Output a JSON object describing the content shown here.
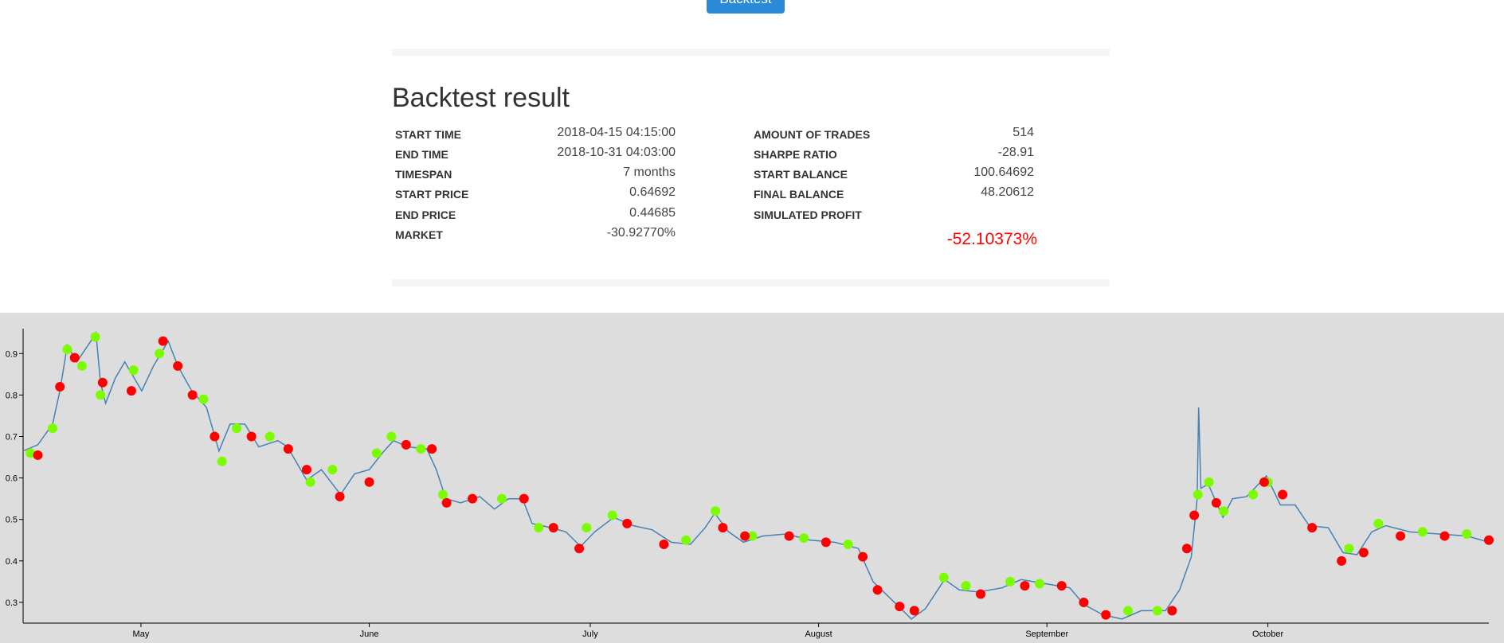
{
  "header": {
    "button": "Backtest"
  },
  "result": {
    "title": "Backtest result",
    "left": [
      {
        "label": "START TIME",
        "value": "2018-04-15 04:15:00"
      },
      {
        "label": "END TIME",
        "value": "2018-10-31 04:03:00"
      },
      {
        "label": "TIMESPAN",
        "value": "7 months"
      },
      {
        "label": "START PRICE",
        "value": "0.64692"
      },
      {
        "label": "END PRICE",
        "value": "0.44685"
      },
      {
        "label": "MARKET",
        "value": "-30.92770%"
      }
    ],
    "right": [
      {
        "label": "AMOUNT OF TRADES",
        "value": "514"
      },
      {
        "label": "SHARPE RATIO",
        "value": "-28.91"
      },
      {
        "label": "START BALANCE",
        "value": "100.64692"
      },
      {
        "label": "FINAL BALANCE",
        "value": "48.20612"
      },
      {
        "label": "SIMULATED PROFIT"
      }
    ],
    "profit": "-52.10373%"
  },
  "chart_data": {
    "type": "line",
    "xlim": [
      0,
      199
    ],
    "ylim": [
      0.25,
      0.96
    ],
    "xticks": [
      {
        "value": 16,
        "label": "May"
      },
      {
        "value": 47,
        "label": "June"
      },
      {
        "value": 77,
        "label": "July"
      },
      {
        "value": 108,
        "label": "August"
      },
      {
        "value": 139,
        "label": "September"
      },
      {
        "value": 169,
        "label": "October"
      }
    ],
    "yticks": [
      0.3,
      0.4,
      0.5,
      0.6,
      0.7,
      0.8,
      0.9
    ],
    "series": [
      {
        "color": "#4682b4",
        "x": [
          0,
          2,
          4,
          5,
          6,
          7.3,
          9.2,
          9.9,
          10.5,
          11.2,
          12.5,
          13.8,
          16.1,
          17.7,
          19.7,
          21,
          22.9,
          24.9,
          26.6,
          28.1,
          30.1,
          32,
          34.6,
          35.9,
          38.5,
          40.5,
          43.1,
          45,
          47,
          49,
          50.3,
          52.2,
          54.8,
          56.1,
          57.4,
          59.4,
          62,
          64,
          65.9,
          67.8,
          69.1,
          71.7,
          73.7,
          75.7,
          77.6,
          80.2,
          82.8,
          85.4,
          88,
          90.6,
          92.6,
          93.9,
          95.8,
          97.8,
          100.4,
          103.6,
          106.9,
          110.2,
          113.4,
          115.4,
          118,
          120.6,
          122.5,
          125.1,
          127.1,
          129.7,
          132.9,
          135.5,
          138.8,
          142.1,
          144,
          146.6,
          149.2,
          151.8,
          155.1,
          157,
          158.6,
          159.4,
          159.6,
          159.9,
          160.9,
          162.9,
          164.2,
          166.1,
          168.8,
          170.7,
          172.7,
          174.6,
          177.2,
          179.2,
          181.1,
          183.1,
          185,
          188.3,
          192.2,
          196.1,
          199
        ],
        "values": [
          0.665,
          0.68,
          0.73,
          0.81,
          0.92,
          0.88,
          0.93,
          0.95,
          0.83,
          0.78,
          0.84,
          0.88,
          0.81,
          0.87,
          0.93,
          0.87,
          0.81,
          0.77,
          0.665,
          0.73,
          0.73,
          0.675,
          0.69,
          0.675,
          0.595,
          0.62,
          0.56,
          0.61,
          0.62,
          0.665,
          0.69,
          0.675,
          0.67,
          0.62,
          0.55,
          0.54,
          0.555,
          0.525,
          0.55,
          0.55,
          0.49,
          0.48,
          0.47,
          0.435,
          0.47,
          0.505,
          0.485,
          0.475,
          0.445,
          0.44,
          0.48,
          0.515,
          0.47,
          0.445,
          0.46,
          0.465,
          0.45,
          0.445,
          0.43,
          0.35,
          0.305,
          0.26,
          0.285,
          0.355,
          0.33,
          0.325,
          0.335,
          0.355,
          0.345,
          0.335,
          0.295,
          0.27,
          0.26,
          0.28,
          0.28,
          0.33,
          0.41,
          0.55,
          0.77,
          0.575,
          0.585,
          0.505,
          0.55,
          0.555,
          0.605,
          0.535,
          0.535,
          0.485,
          0.48,
          0.42,
          0.415,
          0.47,
          0.485,
          0.47,
          0.465,
          0.46,
          0.445
        ]
      }
    ],
    "markers": [
      {
        "color": "#7cfc00",
        "x": [
          1,
          4,
          6,
          8,
          9.8,
          10.5,
          15,
          18.5,
          24.5,
          27,
          29,
          33.5,
          39,
          42,
          48,
          50,
          54,
          57,
          65,
          70,
          76.5,
          80,
          90,
          94,
          99,
          106,
          112,
          125,
          128,
          134,
          138,
          150,
          154,
          159.5,
          161,
          163,
          167,
          169,
          180,
          184,
          190,
          196
        ],
        "values": [
          0.66,
          0.72,
          0.91,
          0.87,
          0.94,
          0.8,
          0.86,
          0.9,
          0.79,
          0.64,
          0.72,
          0.7,
          0.59,
          0.62,
          0.66,
          0.7,
          0.67,
          0.56,
          0.55,
          0.48,
          0.48,
          0.51,
          0.45,
          0.52,
          0.46,
          0.455,
          0.44,
          0.36,
          0.34,
          0.35,
          0.345,
          0.28,
          0.28,
          0.56,
          0.59,
          0.52,
          0.56,
          0.59,
          0.43,
          0.49,
          0.47,
          0.465
        ]
      },
      {
        "color": "#ff0000",
        "x": [
          2,
          5,
          7,
          10.8,
          14.7,
          19,
          21,
          23,
          26,
          31,
          36,
          38.5,
          43,
          47,
          52,
          55.5,
          57.5,
          61,
          68,
          72,
          75.5,
          82,
          87,
          95,
          98,
          104,
          109,
          114,
          116,
          119,
          121,
          130,
          136,
          141,
          144,
          147,
          156,
          158,
          159,
          162,
          168.5,
          171,
          175,
          179,
          182,
          187,
          193,
          199
        ],
        "values": [
          0.655,
          0.82,
          0.89,
          0.83,
          0.81,
          0.93,
          0.87,
          0.8,
          0.7,
          0.7,
          0.67,
          0.62,
          0.555,
          0.59,
          0.68,
          0.67,
          0.54,
          0.55,
          0.55,
          0.48,
          0.43,
          0.49,
          0.44,
          0.48,
          0.46,
          0.46,
          0.445,
          0.41,
          0.33,
          0.29,
          0.28,
          0.32,
          0.34,
          0.34,
          0.3,
          0.27,
          0.28,
          0.43,
          0.51,
          0.54,
          0.59,
          0.56,
          0.48,
          0.4,
          0.42,
          0.46,
          0.46,
          0.45
        ]
      }
    ]
  }
}
